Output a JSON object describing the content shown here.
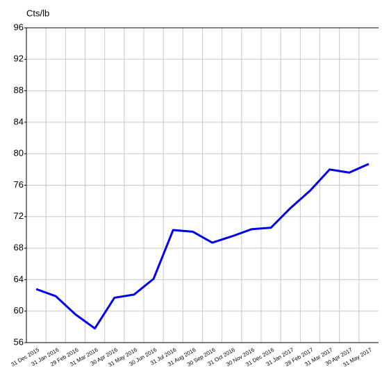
{
  "chart_data": {
    "type": "line",
    "y_label": "Cts/lb",
    "categories": [
      "31 Dec 2015",
      "31 Jan 2016",
      "29 Feb 2016",
      "31 Mar 2016",
      "30 Apr 2016",
      "31 May 2016",
      "30 Jun 2016",
      "31 Jul 2016",
      "31 Aug 2016",
      "30 Sep 2016",
      "31 Oct 2016",
      "30 Nov 2016",
      "31 Dec 2016",
      "31 Jan 2017",
      "28 Feb 2017",
      "31 Mar 2017",
      "30 Apr 2017",
      "31 May 2017"
    ],
    "values": [
      62.8,
      61.9,
      59.6,
      57.8,
      61.7,
      62.1,
      64.1,
      70.3,
      70.1,
      68.7,
      69.5,
      70.4,
      70.6,
      73.1,
      75.3,
      78.0,
      77.6,
      78.7
    ],
    "color": "#0000ee",
    "ylim": [
      56,
      96
    ],
    "yticks": [
      56,
      60,
      64,
      68,
      72,
      76,
      80,
      84,
      88,
      92,
      96
    ],
    "grid": true
  }
}
